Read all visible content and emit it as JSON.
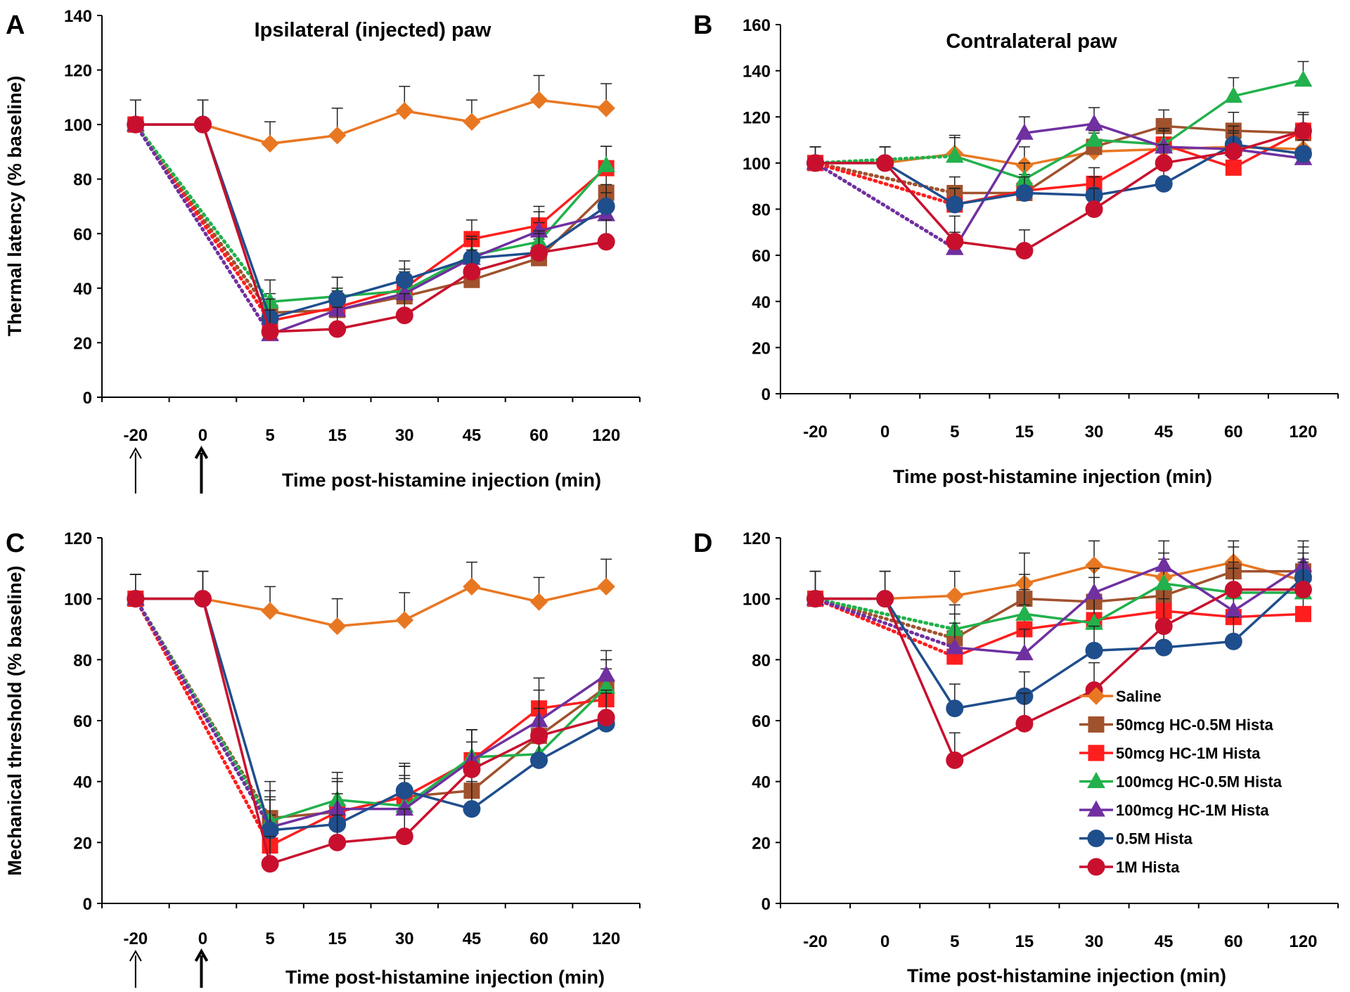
{
  "chart_data": [
    {
      "type": "line",
      "panel_label": "A",
      "title": "Ipsilateral (injected) paw",
      "xlabel": "Time post-histamine injection (min)",
      "ylabel": "Thermal latency (% baseline)",
      "categories": [
        "-20",
        "0",
        "5",
        "15",
        "30",
        "45",
        "60",
        "120"
      ],
      "ylim": [
        0,
        140
      ],
      "yticks": [
        0,
        20,
        40,
        60,
        80,
        100,
        120,
        140
      ],
      "arrows_under": [
        "-20",
        "0"
      ],
      "series": [
        {
          "name": "Saline",
          "color": "#E87722",
          "marker": "diamond",
          "values": [
            100,
            100,
            93,
            96,
            105,
            101,
            109,
            106
          ],
          "errors": [
            9,
            9,
            8,
            10,
            9,
            8,
            9,
            9
          ],
          "dotted_from_first": false
        },
        {
          "name": "50mcg HC-0.5M Hista",
          "color": "#A0522D",
          "marker": "square",
          "values": [
            100,
            null,
            31,
            32,
            37,
            43,
            51,
            75
          ],
          "errors": [
            0,
            0,
            7,
            7,
            7,
            7,
            7,
            8
          ],
          "dotted_from_first": true
        },
        {
          "name": "50mcg HC-1M Hista",
          "color": "#FF1E1E",
          "marker": "square",
          "values": [
            100,
            null,
            28,
            33,
            40,
            58,
            63,
            84
          ],
          "errors": [
            0,
            0,
            7,
            7,
            7,
            7,
            7,
            8
          ],
          "dotted_from_first": true
        },
        {
          "name": "100mcg HC-0.5M Hista",
          "color": "#22B14C",
          "marker": "triangle",
          "values": [
            100,
            null,
            35,
            37,
            39,
            52,
            57,
            85
          ],
          "errors": [
            0,
            0,
            8,
            7,
            7,
            7,
            7,
            7
          ],
          "dotted_from_first": true
        },
        {
          "name": "100mcg HC-1M Hista",
          "color": "#7030A0",
          "marker": "triangle",
          "values": [
            100,
            null,
            23,
            32,
            38,
            51,
            61,
            67
          ],
          "errors": [
            0,
            0,
            7,
            7,
            7,
            7,
            7,
            8
          ],
          "dotted_from_first": true
        },
        {
          "name": "0.5M Hista",
          "color": "#1F4E8C",
          "marker": "circle",
          "values": [
            100,
            100,
            29,
            36,
            43,
            51,
            53,
            70
          ],
          "errors": [
            9,
            9,
            7,
            8,
            7,
            7,
            7,
            8
          ],
          "dotted_from_first": false
        },
        {
          "name": "1M Hista",
          "color": "#C8102E",
          "marker": "circle",
          "values": [
            100,
            100,
            24,
            25,
            30,
            46,
            53,
            57
          ],
          "errors": [
            9,
            9,
            8,
            8,
            8,
            8,
            8,
            8
          ],
          "dotted_from_first": false
        }
      ]
    },
    {
      "type": "line",
      "panel_label": "B",
      "title": "Contralateral paw",
      "xlabel": "Time post-histamine injection (min)",
      "ylabel": "",
      "categories": [
        "-20",
        "0",
        "5",
        "15",
        "30",
        "45",
        "60",
        "120"
      ],
      "ylim": [
        0,
        160
      ],
      "yticks": [
        0,
        20,
        40,
        60,
        80,
        100,
        120,
        140,
        160
      ],
      "arrows_under": [],
      "series": [
        {
          "name": "Saline",
          "color": "#E87722",
          "marker": "diamond",
          "values": [
            100,
            100,
            104,
            99,
            105,
            106,
            107,
            106
          ],
          "errors": [
            7,
            7,
            8,
            8,
            8,
            8,
            8,
            8
          ],
          "dotted_from_first": false
        },
        {
          "name": "50mcg HC-0.5M Hista",
          "color": "#A0522D",
          "marker": "square",
          "values": [
            100,
            null,
            87,
            87,
            107,
            116,
            114,
            113
          ],
          "errors": [
            0,
            0,
            7,
            7,
            7,
            7,
            8,
            8
          ],
          "dotted_from_first": true
        },
        {
          "name": "50mcg HC-1M Hista",
          "color": "#FF1E1E",
          "marker": "square",
          "values": [
            100,
            null,
            82,
            88,
            91,
            108,
            98,
            114
          ],
          "errors": [
            0,
            0,
            7,
            7,
            7,
            7,
            7,
            8
          ],
          "dotted_from_first": true
        },
        {
          "name": "100mcg HC-0.5M Hista",
          "color": "#22B14C",
          "marker": "triangle",
          "values": [
            100,
            null,
            103,
            93,
            110,
            108,
            129,
            136
          ],
          "errors": [
            0,
            0,
            8,
            7,
            7,
            7,
            8,
            8
          ],
          "dotted_from_first": true
        },
        {
          "name": "100mcg HC-1M Hista",
          "color": "#7030A0",
          "marker": "triangle",
          "values": [
            100,
            null,
            63,
            113,
            117,
            107,
            106,
            102
          ],
          "errors": [
            0,
            0,
            7,
            7,
            7,
            7,
            8,
            8
          ],
          "dotted_from_first": true
        },
        {
          "name": "0.5M Hista",
          "color": "#1F4E8C",
          "marker": "circle",
          "values": [
            100,
            100,
            82,
            87,
            86,
            91,
            108,
            104
          ],
          "errors": [
            7,
            7,
            7,
            7,
            8,
            9,
            8,
            8
          ],
          "dotted_from_first": false
        },
        {
          "name": "1M Hista",
          "color": "#C8102E",
          "marker": "circle",
          "values": [
            100,
            100,
            66,
            62,
            80,
            100,
            105,
            114
          ],
          "errors": [
            7,
            7,
            11,
            9,
            9,
            8,
            8,
            8
          ],
          "dotted_from_first": false
        }
      ]
    },
    {
      "type": "line",
      "panel_label": "C",
      "title": "",
      "xlabel": "Time post-histamine injection (min)",
      "ylabel": "Mechanical threshold (% baseline)",
      "categories": [
        "-20",
        "0",
        "5",
        "15",
        "30",
        "45",
        "60",
        "120"
      ],
      "ylim": [
        0,
        120
      ],
      "yticks": [
        0,
        20,
        40,
        60,
        80,
        100,
        120
      ],
      "arrows_under": [
        "-20",
        "0"
      ],
      "series": [
        {
          "name": "Saline",
          "color": "#E87722",
          "marker": "diamond",
          "values": [
            100,
            100,
            96,
            91,
            93,
            104,
            99,
            104
          ],
          "errors": [
            8,
            9,
            8,
            9,
            9,
            8,
            8,
            9
          ],
          "dotted_from_first": false
        },
        {
          "name": "50mcg HC-0.5M Hista",
          "color": "#A0522D",
          "marker": "square",
          "values": [
            100,
            null,
            28,
            30,
            35,
            37,
            55,
            71
          ],
          "errors": [
            0,
            0,
            12,
            10,
            10,
            9,
            9,
            9
          ],
          "dotted_from_first": true
        },
        {
          "name": "50mcg HC-1M Hista",
          "color": "#FF1E1E",
          "marker": "square",
          "values": [
            100,
            null,
            19,
            30,
            35,
            47,
            64,
            67
          ],
          "errors": [
            0,
            0,
            10,
            10,
            10,
            10,
            10,
            10
          ],
          "dotted_from_first": true
        },
        {
          "name": "100mcg HC-0.5M Hista",
          "color": "#22B14C",
          "marker": "triangle",
          "values": [
            100,
            null,
            27,
            34,
            32,
            48,
            49,
            71
          ],
          "errors": [
            0,
            0,
            10,
            9,
            10,
            9,
            9,
            9
          ],
          "dotted_from_first": true
        },
        {
          "name": "100mcg HC-1M Hista",
          "color": "#7030A0",
          "marker": "triangle",
          "values": [
            100,
            null,
            25,
            31,
            31,
            47,
            60,
            75
          ],
          "errors": [
            0,
            0,
            10,
            10,
            10,
            10,
            10,
            8
          ],
          "dotted_from_first": true
        },
        {
          "name": "0.5M Hista",
          "color": "#1F4E8C",
          "marker": "circle",
          "values": [
            100,
            100,
            24,
            26,
            37,
            31,
            47,
            59
          ],
          "errors": [
            8,
            9,
            10,
            10,
            9,
            9,
            10,
            10
          ],
          "dotted_from_first": false
        },
        {
          "name": "1M Hista",
          "color": "#C8102E",
          "marker": "circle",
          "values": [
            100,
            100,
            13,
            20,
            22,
            44,
            55,
            61
          ],
          "errors": [
            8,
            9,
            9,
            9,
            9,
            9,
            9,
            9
          ],
          "dotted_from_first": false
        }
      ]
    },
    {
      "type": "line",
      "panel_label": "D",
      "title": "",
      "xlabel": "Time post-histamine injection (min)",
      "ylabel": "",
      "categories": [
        "-20",
        "0",
        "5",
        "15",
        "30",
        "45",
        "60",
        "120"
      ],
      "ylim": [
        0,
        120
      ],
      "yticks": [
        0,
        20,
        40,
        60,
        80,
        100,
        120
      ],
      "arrows_under": [],
      "legend_position": "inside-right",
      "series": [
        {
          "name": "Saline",
          "color": "#E87722",
          "marker": "diamond",
          "values": [
            100,
            100,
            101,
            105,
            111,
            107,
            112,
            106
          ],
          "errors": [
            9,
            9,
            8,
            10,
            8,
            8,
            7,
            7
          ],
          "dotted_from_first": false
        },
        {
          "name": "50mcg HC-0.5M Hista",
          "color": "#A0522D",
          "marker": "square",
          "values": [
            100,
            null,
            87,
            100,
            99,
            101,
            109,
            109
          ],
          "errors": [
            0,
            0,
            8,
            8,
            8,
            8,
            8,
            8
          ],
          "dotted_from_first": true
        },
        {
          "name": "50mcg HC-1M Hista",
          "color": "#FF1E1E",
          "marker": "square",
          "values": [
            100,
            null,
            81,
            90,
            93,
            96,
            94,
            95
          ],
          "errors": [
            0,
            0,
            8,
            8,
            8,
            8,
            8,
            8
          ],
          "dotted_from_first": true
        },
        {
          "name": "100mcg HC-0.5M Hista",
          "color": "#22B14C",
          "marker": "triangle",
          "values": [
            100,
            null,
            90,
            95,
            92,
            105,
            102,
            102
          ],
          "errors": [
            0,
            0,
            8,
            8,
            8,
            8,
            8,
            8
          ],
          "dotted_from_first": true
        },
        {
          "name": "100mcg HC-1M Hista",
          "color": "#7030A0",
          "marker": "triangle",
          "values": [
            100,
            null,
            84,
            82,
            102,
            111,
            96,
            111
          ],
          "errors": [
            0,
            0,
            8,
            8,
            8,
            8,
            8,
            8
          ],
          "dotted_from_first": true
        },
        {
          "name": "0.5M Hista",
          "color": "#1F4E8C",
          "marker": "circle",
          "values": [
            100,
            100,
            64,
            68,
            83,
            84,
            86,
            107
          ],
          "errors": [
            9,
            9,
            8,
            8,
            8,
            8,
            8,
            8
          ],
          "dotted_from_first": false
        },
        {
          "name": "1M Hista",
          "color": "#C8102E",
          "marker": "circle",
          "values": [
            100,
            100,
            47,
            59,
            70,
            91,
            103,
            103
          ],
          "errors": [
            9,
            9,
            9,
            10,
            9,
            9,
            9,
            9
          ],
          "dotted_from_first": false
        }
      ]
    }
  ]
}
